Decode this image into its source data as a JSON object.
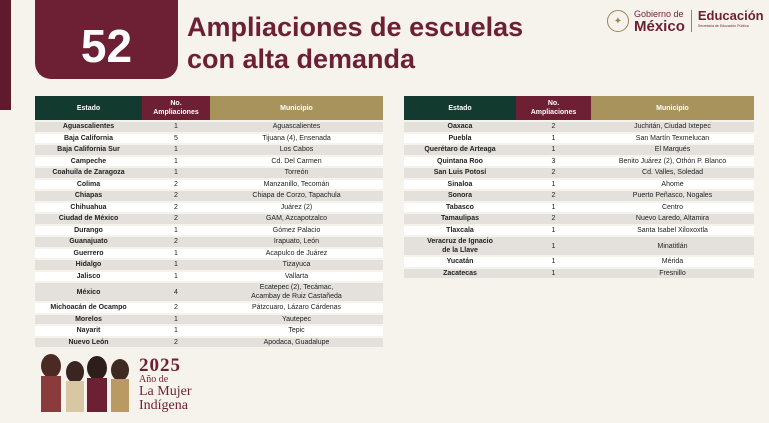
{
  "header": {
    "number": "52",
    "title_line1": "Ampliaciones de escuelas",
    "title_line2": "con alta demanda"
  },
  "logos": {
    "gov_line1": "Gobierno de",
    "gov_line2": "México",
    "sep_line1": "Educación",
    "sep_line2": "Secretaría de Educación Pública"
  },
  "table_headers": {
    "estado": "Estado",
    "num_line1": "No.",
    "num_line2": "Ampliaciones",
    "municipio": "Municipio"
  },
  "left_rows": [
    {
      "estado": "Aguascalientes",
      "num": "1",
      "municipio": "Aguascalientes"
    },
    {
      "estado": "Baja California",
      "num": "5",
      "municipio": "Tijuana (4), Ensenada"
    },
    {
      "estado": "Baja California Sur",
      "num": "1",
      "municipio": "Los Cabos"
    },
    {
      "estado": "Campeche",
      "num": "1",
      "municipio": "Cd. Del Carmen"
    },
    {
      "estado": "Coahuila de Zaragoza",
      "num": "1",
      "municipio": "Torreón"
    },
    {
      "estado": "Colima",
      "num": "2",
      "municipio": "Manzanillo, Tecomán"
    },
    {
      "estado": "Chiapas",
      "num": "2",
      "municipio": "Chiapa de Corzo, Tapachula"
    },
    {
      "estado": "Chihuahua",
      "num": "2",
      "municipio": "Juárez (2)"
    },
    {
      "estado": "Ciudad de México",
      "num": "2",
      "municipio": "GAM, Azcapotzalco"
    },
    {
      "estado": "Durango",
      "num": "1",
      "municipio": "Gómez Palacio"
    },
    {
      "estado": "Guanajuato",
      "num": "2",
      "municipio": "Irapuato, León"
    },
    {
      "estado": "Guerrero",
      "num": "1",
      "municipio": "Acapulco de Juárez"
    },
    {
      "estado": "Hidalgo",
      "num": "1",
      "municipio": "Tizayuca"
    },
    {
      "estado": "Jalisco",
      "num": "1",
      "municipio": "Vallarta"
    },
    {
      "estado": "México",
      "num": "4",
      "municipio": "Ecatepec (2), Tecámac,",
      "municipio2": "Acambay de Ruiz Castañeda"
    },
    {
      "estado": "Michoacán de Ocampo",
      "num": "2",
      "municipio": "Pátzcuaro, Lázaro Cárdenas"
    },
    {
      "estado": "Morelos",
      "num": "1",
      "municipio": "Yautepec"
    },
    {
      "estado": "Nayarit",
      "num": "1",
      "municipio": "Tepic"
    },
    {
      "estado": "Nuevo León",
      "num": "2",
      "municipio": "Apodaca, Guadalupe"
    }
  ],
  "right_rows": [
    {
      "estado": "Oaxaca",
      "num": "2",
      "municipio": "Juchitán, Ciudad Ixtepec"
    },
    {
      "estado": "Puebla",
      "num": "1",
      "municipio": "San Martín Texmelucan"
    },
    {
      "estado": "Querétaro de Arteaga",
      "num": "1",
      "municipio": "El Marqués"
    },
    {
      "estado": "Quintana Roo",
      "num": "3",
      "municipio": "Benito Juárez (2), Othón P. Blanco"
    },
    {
      "estado": "San Luis Potosí",
      "num": "2",
      "municipio": "Cd. Valles, Soledad"
    },
    {
      "estado": "Sinaloa",
      "num": "1",
      "municipio": "Ahome"
    },
    {
      "estado": "Sonora",
      "num": "2",
      "municipio": "Puerto Peñasco, Nogales"
    },
    {
      "estado": "Tabasco",
      "num": "1",
      "municipio": "Centro"
    },
    {
      "estado": "Tamaulipas",
      "num": "2",
      "municipio": "Nuevo Laredo, Altamira"
    },
    {
      "estado": "Tlaxcala",
      "num": "1",
      "municipio": "Santa Isabel Xiloxoxtla"
    },
    {
      "estado": "Veracruz de Ignacio",
      "estado2": "de la Llave",
      "num": "1",
      "municipio": "Minatitlán"
    },
    {
      "estado": "Yucatán",
      "num": "1",
      "municipio": "Mérida"
    },
    {
      "estado": "Zacatecas",
      "num": "1",
      "municipio": "Fresnillo"
    }
  ],
  "footer": {
    "year": "2025",
    "line2": "Año de",
    "line3": "La Mujer",
    "line4": "Indígena"
  },
  "colors": {
    "guinda": "#6d1f34",
    "green": "#133a2f",
    "gold": "#a8935d"
  }
}
